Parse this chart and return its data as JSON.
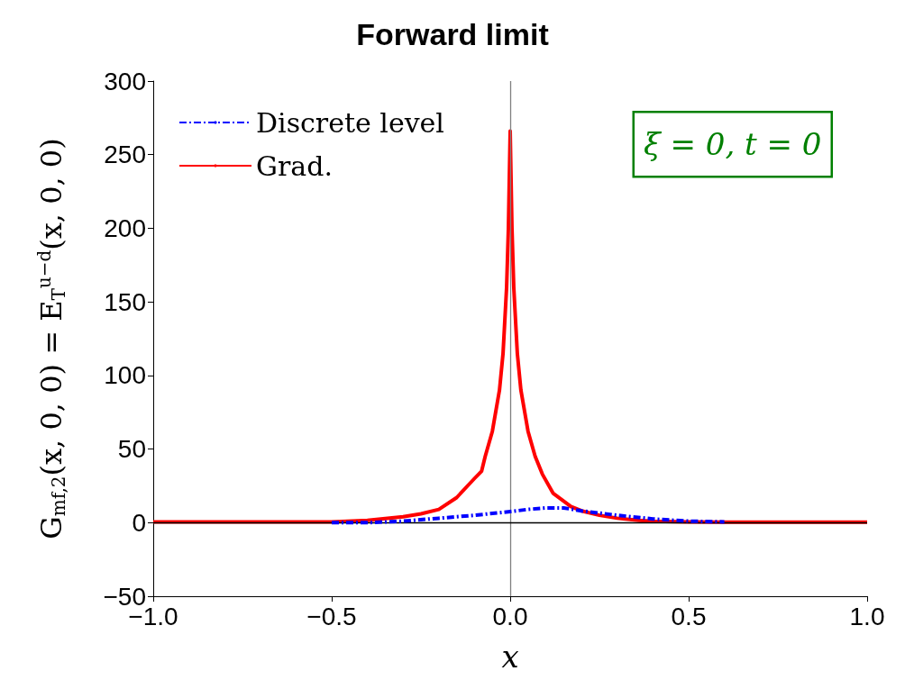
{
  "chart_data": {
    "type": "line",
    "title": "Forward limit",
    "xlabel": "x",
    "ylabel": "G$_{mf,2}$(x, 0, 0) = E$_{T}$$^{u−d}$(x, 0, 0)",
    "xlim": [
      -1,
      1
    ],
    "xticks": [
      {
        "value": -1,
        "label": "−1.0"
      },
      {
        "value": -0.5,
        "label": "−0.5"
      },
      {
        "value": 0,
        "label": "0.0"
      },
      {
        "value": 0.5,
        "label": "0.5"
      },
      {
        "value": 1,
        "label": "1.0"
      }
    ],
    "ylim": [
      -50,
      300
    ],
    "yticks": [
      {
        "value": -50,
        "label": "−50"
      },
      0,
      50,
      100,
      150,
      200,
      250,
      300
    ],
    "grid": false,
    "legend": "top left",
    "marker": "none",
    "series": [
      {
        "name": "Discrete level",
        "color": "#0000ff",
        "line_style": "dashed",
        "x": [
          -0.5,
          -0.4,
          -0.3,
          -0.2,
          -0.1,
          0,
          0.05,
          0.1,
          0.15,
          0.2,
          0.3,
          0.4,
          0.5,
          0.6
        ],
        "values": [
          0,
          0,
          1,
          3,
          5,
          7.5,
          9,
          10,
          10,
          8,
          5,
          2.5,
          1,
          0.5
        ]
      },
      {
        "name": "Grad.",
        "color": "#ff0000",
        "line_style": "solid",
        "x": [
          -1,
          -0.8,
          -0.6,
          -0.5,
          -0.4,
          -0.3,
          -0.25,
          -0.2,
          -0.15,
          -0.1,
          -0.08,
          -0.07,
          -0.05,
          -0.03,
          -0.02,
          -0.01,
          -0.005,
          0,
          0.005,
          0.01,
          0.02,
          0.03,
          0.05,
          0.07,
          0.09,
          0.12,
          0.17,
          0.2,
          0.25,
          0.3,
          0.36,
          0.4,
          0.5,
          0.6,
          0.8,
          1
        ],
        "values": [
          0.5,
          0.5,
          0.5,
          0.5,
          1.5,
          4,
          6,
          9,
          17,
          30,
          35,
          45,
          62,
          90,
          115,
          160,
          200,
          266,
          200,
          160,
          115,
          90,
          62,
          45,
          33,
          20,
          11,
          8,
          5,
          3,
          1.5,
          1,
          0.5,
          0.3,
          0.3,
          0.3
        ]
      }
    ],
    "ref_lines": [
      {
        "axis": "x",
        "value": 0,
        "color": "#808080"
      },
      {
        "axis": "y",
        "value": 0,
        "color": "#000000"
      }
    ],
    "annotations": [
      "ξ = 0, t = 0"
    ]
  }
}
